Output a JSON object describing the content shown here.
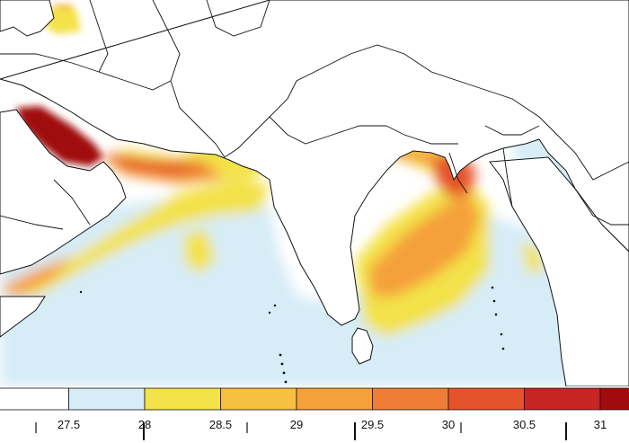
{
  "colorbar": {
    "colors": [
      "#ffffff",
      "#d6ecf7",
      "#f3e24a",
      "#f7c040",
      "#f5a03a",
      "#ef7d35",
      "#e5532c",
      "#c82424",
      "#a00c0c"
    ],
    "tick_labels": [
      "27.5",
      "28",
      "28.5",
      "29",
      "29.5",
      "30",
      "30.5",
      "31"
    ]
  },
  "map_colors": {
    "coast": "#111111",
    "land": "#ffffff",
    "sea_base": "#ffffff"
  }
}
